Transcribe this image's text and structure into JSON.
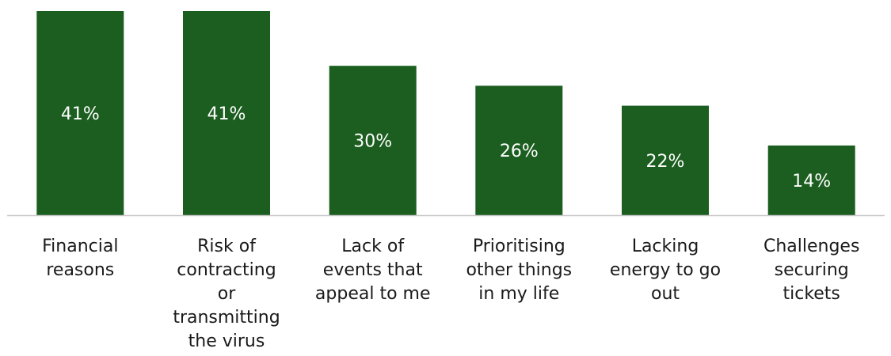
{
  "chart_data": {
    "type": "bar",
    "title": "",
    "xlabel": "",
    "ylabel": "",
    "ylim": [
      0,
      41
    ],
    "grid": false,
    "legend": "none",
    "bar_color": "#1b5e1f",
    "axis_color": "#c8c8c8",
    "categories": [
      [
        "Financial",
        "reasons"
      ],
      [
        "Risk of",
        "contracting",
        "or",
        "transmitting",
        "the virus"
      ],
      [
        "Lack of",
        "events that",
        "appeal to me"
      ],
      [
        "Prioritising",
        "other things",
        "in my life"
      ],
      [
        "Lacking",
        "energy to go",
        "out"
      ],
      [
        "Challenges",
        "securing",
        "tickets"
      ]
    ],
    "values": [
      41,
      41,
      30,
      26,
      22,
      14
    ],
    "data_labels": [
      "41%",
      "41%",
      "30%",
      "26%",
      "22%",
      "14%"
    ]
  }
}
